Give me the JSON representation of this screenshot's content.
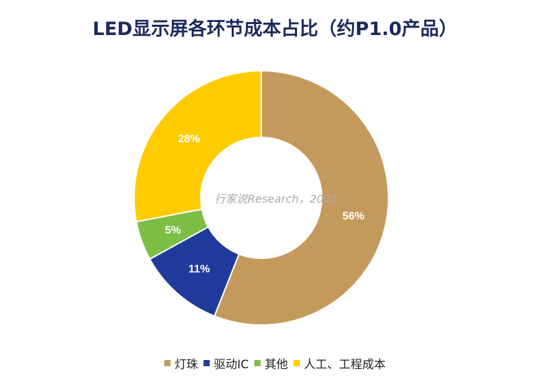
{
  "chart_data": {
    "type": "pie",
    "variant": "donut",
    "title": "LED显示屏各环节成本占比（约P1.0产品）",
    "categories": [
      "灯珠",
      "驱动IC",
      "其他",
      "人工、工程成本"
    ],
    "values": [
      56,
      11,
      5,
      28
    ],
    "labels": [
      "56%",
      "11%",
      "5%",
      "28%"
    ],
    "colors": [
      "#C49A5C",
      "#1F3A9A",
      "#7DBE45",
      "#FFCC00"
    ],
    "legend_position": "bottom",
    "watermark": "行家说Research，2021"
  }
}
